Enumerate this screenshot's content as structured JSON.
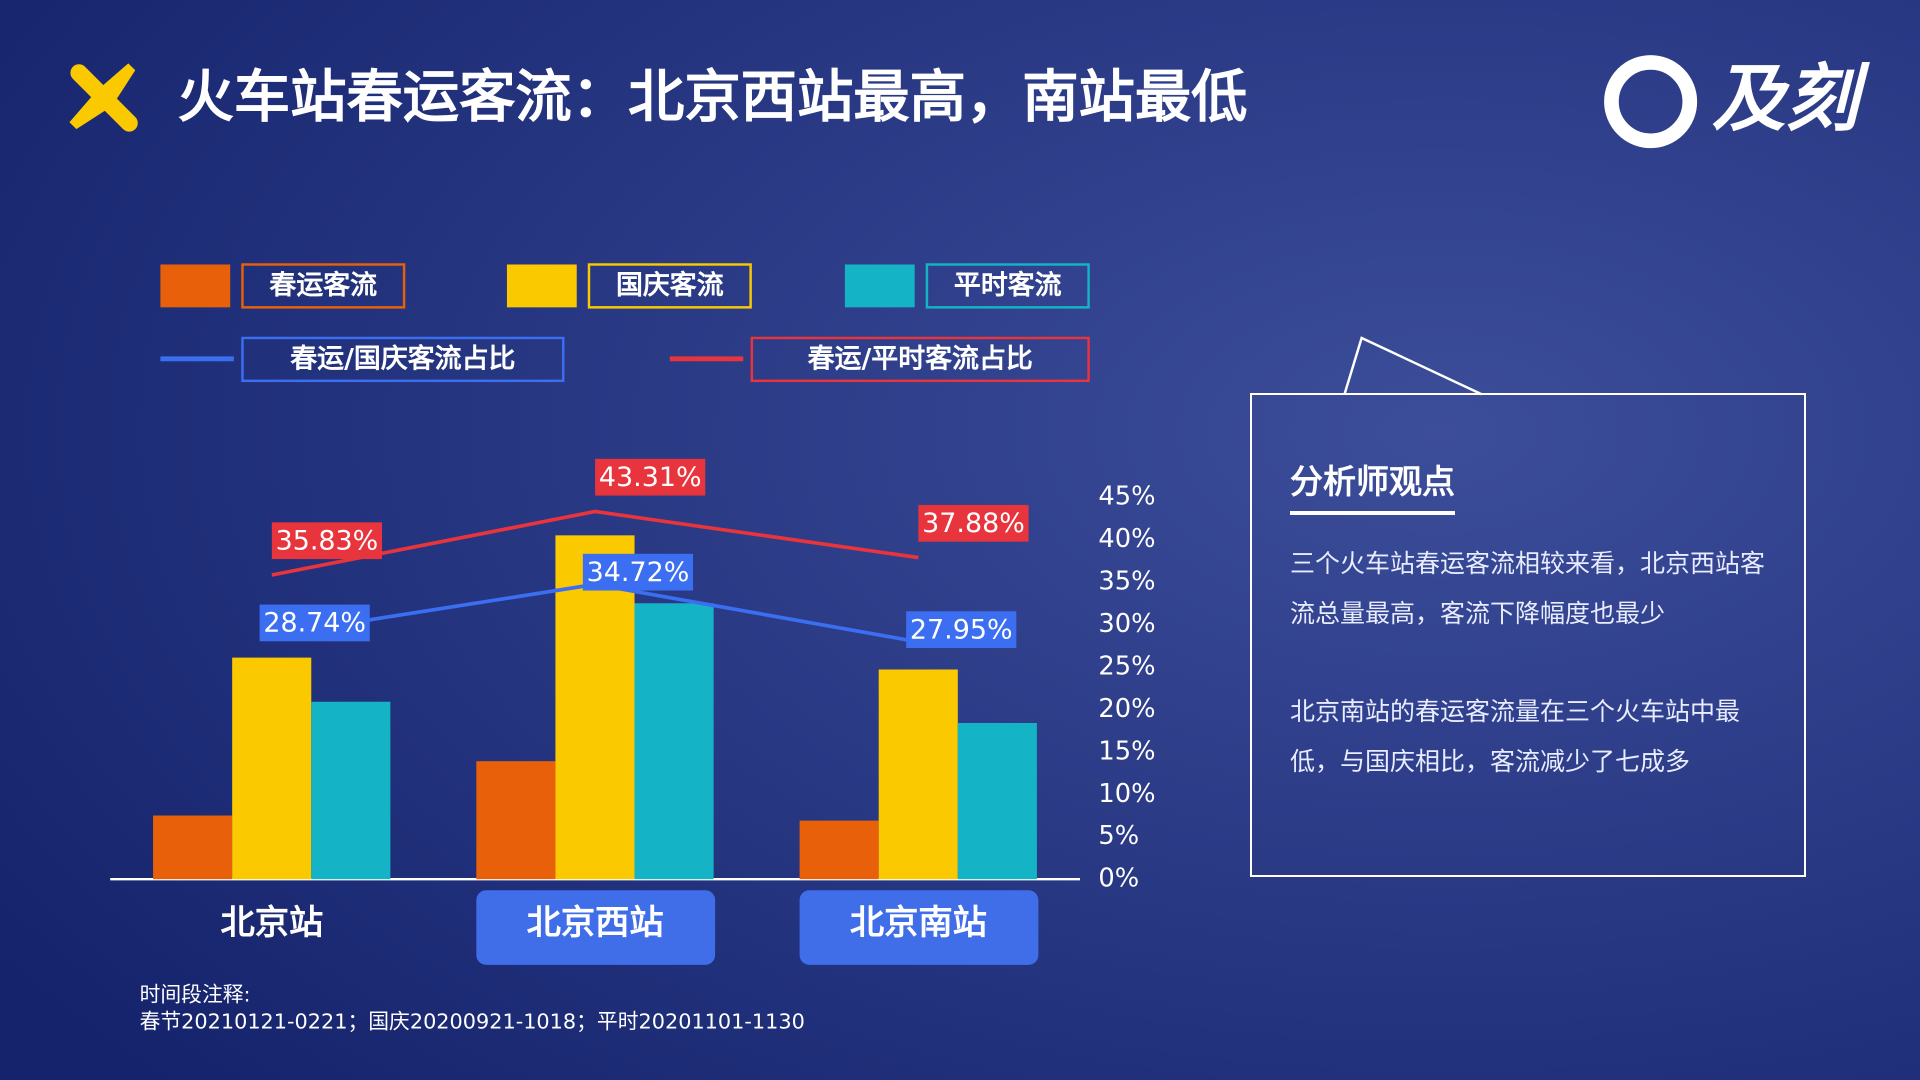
{
  "header": {
    "title": "火车站春运客流：北京西站最高，南站最低",
    "logo": "及刻"
  },
  "chart_data": {
    "type": "bar",
    "categories": [
      "北京站",
      "北京西站",
      "北京南站"
    ],
    "series": [
      {
        "name": "春运客流",
        "color": "#e8600a",
        "values": [
          7.5,
          13.9,
          6.9
        ]
      },
      {
        "name": "国庆客流",
        "color": "#fbc900",
        "values": [
          26.1,
          40.5,
          24.7
        ]
      },
      {
        "name": "平时客流",
        "color": "#14b4c6",
        "values": [
          20.9,
          32.5,
          18.4
        ]
      },
      {
        "name": "春运/国庆客流占比",
        "type": "line",
        "axis": "y2",
        "color": "#3b6ef0",
        "values": [
          28.74,
          34.72,
          27.95
        ],
        "value_labels": [
          "28.74%",
          "34.72%",
          "27.95%"
        ]
      },
      {
        "name": "春运/平时客流占比",
        "type": "line",
        "axis": "y2",
        "color": "#e8343c",
        "values": [
          35.83,
          43.31,
          37.88
        ],
        "value_labels": [
          "35.83%",
          "43.31%",
          "37.88%"
        ]
      }
    ],
    "ylim": [
      0,
      45
    ],
    "y2lim": [
      0,
      45
    ],
    "y2ticks": [
      {
        "value": 0,
        "label": "0%"
      },
      {
        "value": 5,
        "label": "5%"
      },
      {
        "value": 10,
        "label": "10%"
      },
      {
        "value": 15,
        "label": "15%"
      },
      {
        "value": 20,
        "label": "20%"
      },
      {
        "value": 25,
        "label": "25%"
      },
      {
        "value": 30,
        "label": "30%"
      },
      {
        "value": 35,
        "label": "35%"
      },
      {
        "value": 40,
        "label": "40%"
      },
      {
        "value": 45,
        "label": "45%"
      }
    ]
  },
  "note": {
    "title": "时间段注释:",
    "text": "春节20210121-0221；国庆20200921-1018；平时20201101-1130"
  },
  "panel": {
    "title": "分析师观点",
    "paragraphs": [
      "三个火车站春运客流相较来看，北京西站客流总量最高，客流下降幅度也最少",
      "北京南站的春运客流量在三个火车站中最低，与国庆相比，客流减少了七成多"
    ]
  }
}
